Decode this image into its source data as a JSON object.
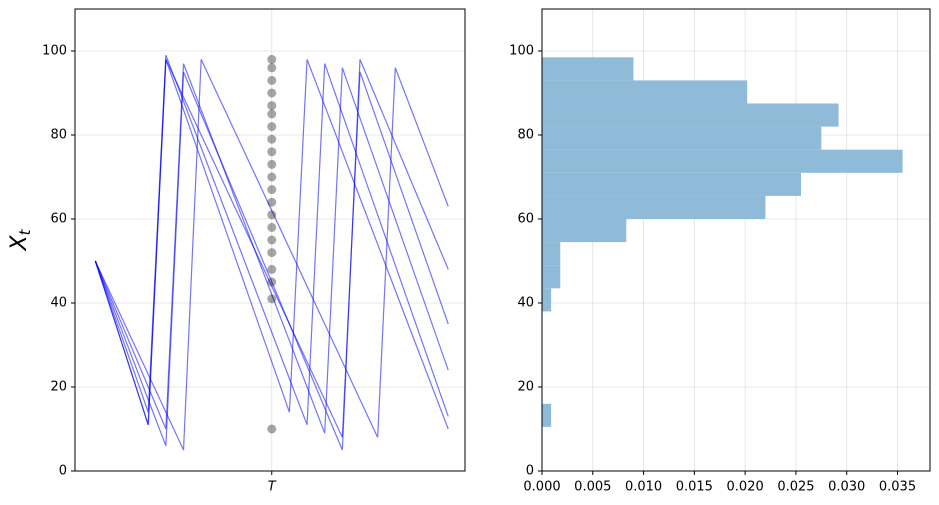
{
  "chart_data": [
    {
      "type": "line",
      "ylabel": "X",
      "ylabel_subscript": "t",
      "x": [
        0,
        2,
        4,
        6,
        8,
        10,
        12,
        14,
        16,
        18,
        20,
        22,
        24,
        26,
        28,
        30,
        32,
        34,
        36,
        38,
        40
      ],
      "xlim": [
        -2.3,
        41.9
      ],
      "ylim": [
        0,
        110
      ],
      "xticks": [
        {
          "value": 20,
          "label": "T"
        }
      ],
      "yticks": [
        0,
        20,
        40,
        60,
        80,
        100
      ],
      "grid": true,
      "series": [
        {
          "color": "#0000ff",
          "values": [
            50,
            37,
            24,
            11,
            98,
            86,
            74,
            62,
            50,
            38,
            26,
            14,
            98,
            87,
            76,
            65,
            54,
            43,
            32,
            21,
            10
          ]
        },
        {
          "color": "#0000ff",
          "values": [
            50,
            40,
            30,
            20,
            10,
            97,
            86,
            75,
            64,
            53,
            42,
            31,
            20,
            9,
            96,
            84,
            72,
            60,
            48,
            36,
            24
          ]
        },
        {
          "color": "#0000ff",
          "values": [
            50,
            39,
            28,
            17,
            6,
            95,
            85,
            75,
            65,
            55,
            45,
            35,
            25,
            15,
            5,
            98,
            88,
            78,
            68,
            58,
            48
          ]
        },
        {
          "color": "#0000ff",
          "values": [
            50,
            38,
            26,
            14,
            99,
            88,
            77,
            66,
            55,
            44,
            33,
            22,
            11,
            97,
            85,
            73,
            61,
            49,
            37,
            25,
            13
          ]
        },
        {
          "color": "#0000ff",
          "values": [
            50,
            41,
            32,
            23,
            14,
            5,
            98,
            89,
            80,
            71,
            62,
            53,
            44,
            35,
            26,
            17,
            8,
            96,
            85,
            74,
            63
          ]
        },
        {
          "color": "#0000ff",
          "values": [
            50,
            37,
            24,
            11,
            98,
            89,
            80,
            71,
            62,
            53,
            44,
            35,
            26,
            17,
            8,
            95,
            83,
            71,
            59,
            47,
            35
          ]
        }
      ],
      "markers": {
        "color": "#000000",
        "values": [
          98,
          96,
          93,
          90,
          87,
          85,
          82,
          79,
          76,
          73,
          70,
          67,
          64,
          61,
          58,
          55,
          52,
          48,
          45,
          41,
          10
        ]
      }
    },
    {
      "type": "histogram",
      "orientation": "horizontal",
      "color": "#8fbbd9",
      "bins": [
        10.5,
        16,
        21.5,
        27,
        32.5,
        38,
        43.5,
        49,
        54.5,
        60,
        65.5,
        71,
        76.5,
        82,
        87.5,
        93,
        98.5
      ],
      "values": [
        0.0009,
        0,
        0,
        0,
        0,
        0.0009,
        0.0018,
        0.0018,
        0.0083,
        0.022,
        0.0255,
        0.0355,
        0.0275,
        0.0292,
        0.0202,
        0.009
      ],
      "xlim": [
        0,
        0.0382
      ],
      "ylim": [
        0,
        110
      ],
      "xticks": [
        {
          "value": 0,
          "label": "0.000"
        },
        {
          "value": 0.005,
          "label": "0.005"
        },
        {
          "value": 0.01,
          "label": "0.010"
        },
        {
          "value": 0.015,
          "label": "0.015"
        },
        {
          "value": 0.02,
          "label": "0.020"
        },
        {
          "value": 0.025,
          "label": "0.025"
        },
        {
          "value": 0.03,
          "label": "0.030"
        },
        {
          "value": 0.035,
          "label": "0.035"
        }
      ],
      "yticks": [
        0,
        20,
        40,
        60,
        80,
        100
      ],
      "grid": true
    }
  ]
}
